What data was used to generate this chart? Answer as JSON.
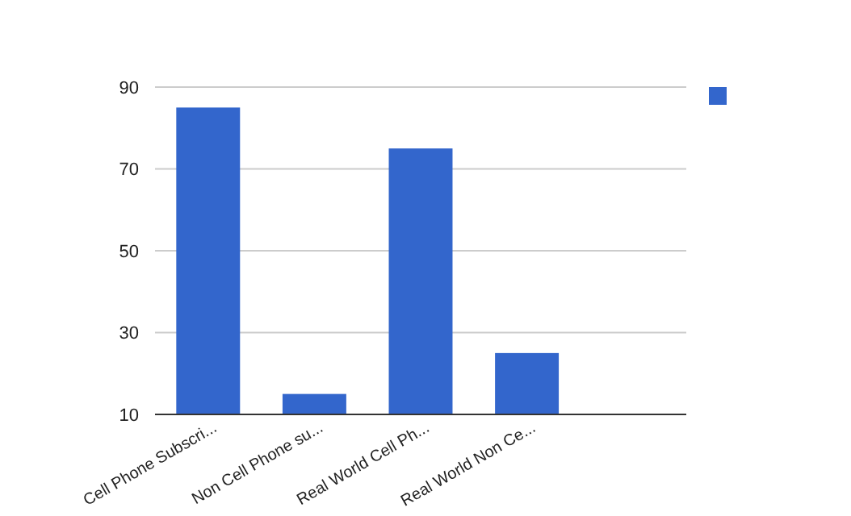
{
  "chart_data": {
    "type": "bar",
    "categories": [
      "Cell Phone Subscri...",
      "Non Cell Phone su...",
      "Real World Cell Ph...",
      "Real World Non Ce...",
      null
    ],
    "series": [
      {
        "color": "#3366cc",
        "values": [
          85,
          15,
          75,
          25,
          null
        ]
      }
    ],
    "ylim": [
      10,
      90
    ],
    "yticks": [
      10,
      30,
      50,
      70,
      90
    ],
    "grid": "y"
  }
}
